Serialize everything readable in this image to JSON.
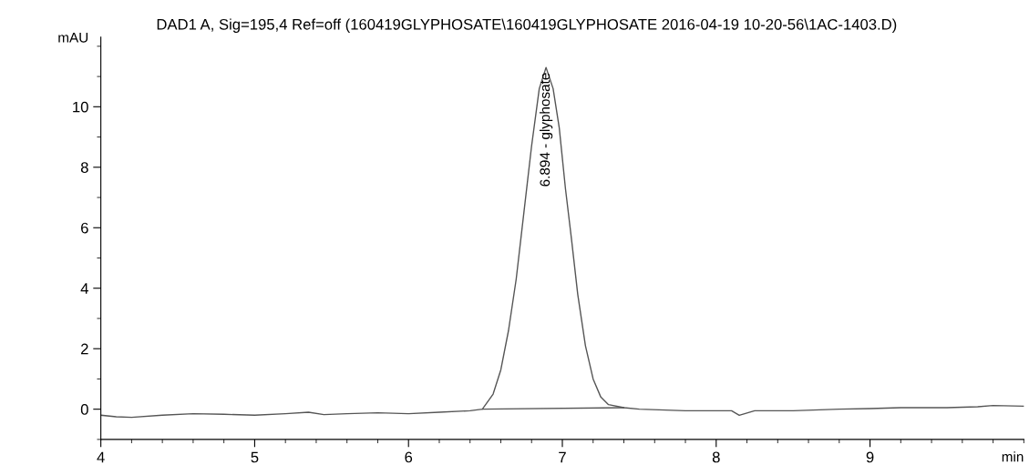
{
  "chart_data": {
    "type": "line",
    "title": "DAD1 A, Sig=195,4 Ref=off (160419GLYPHOSATE\\160419GLYPHOSATE 2016-04-19 10-20-56\\1AC-1403.D)",
    "xlabel": "min",
    "ylabel": "mAU",
    "xlim": [
      4,
      10
    ],
    "xticks": [
      4,
      5,
      6,
      7,
      8,
      9
    ],
    "ylim": [
      -1,
      12.3
    ],
    "yticks": [
      0,
      2,
      4,
      6,
      8,
      10
    ],
    "grid": false,
    "legend": false,
    "marker": "none",
    "line_style": "solid",
    "series": [
      {
        "color": "#555555",
        "x": [
          4.0,
          4.1,
          4.2,
          4.4,
          4.6,
          4.8,
          5.0,
          5.2,
          5.35,
          5.45,
          5.6,
          5.8,
          6.0,
          6.2,
          6.4,
          6.48,
          6.55,
          6.6,
          6.65,
          6.7,
          6.75,
          6.8,
          6.85,
          6.894,
          6.94,
          6.98,
          7.02,
          7.06,
          7.1,
          7.15,
          7.2,
          7.25,
          7.3,
          7.4,
          7.5,
          7.8,
          8.1,
          8.15,
          8.25,
          8.5,
          8.8,
          9.0,
          9.2,
          9.5,
          9.7,
          9.8,
          10.0
        ],
        "values": [
          -0.2,
          -0.25,
          -0.27,
          -0.2,
          -0.15,
          -0.17,
          -0.2,
          -0.15,
          -0.1,
          -0.18,
          -0.15,
          -0.12,
          -0.15,
          -0.1,
          -0.05,
          0.0,
          0.5,
          1.3,
          2.6,
          4.3,
          6.5,
          8.7,
          10.6,
          11.3,
          10.6,
          9.3,
          7.3,
          5.6,
          3.8,
          2.1,
          1.0,
          0.4,
          0.15,
          0.05,
          0.0,
          -0.05,
          -0.05,
          -0.2,
          -0.05,
          -0.05,
          0.0,
          0.02,
          0.05,
          0.05,
          0.08,
          0.12,
          0.1
        ]
      },
      {
        "color": "#555555",
        "x": [
          6.48,
          7.4
        ],
        "values": [
          0.0,
          0.05
        ]
      }
    ],
    "annotations": [
      {
        "text": "6.894 - glyphosate",
        "x": 6.894,
        "y": 11.3
      }
    ]
  }
}
